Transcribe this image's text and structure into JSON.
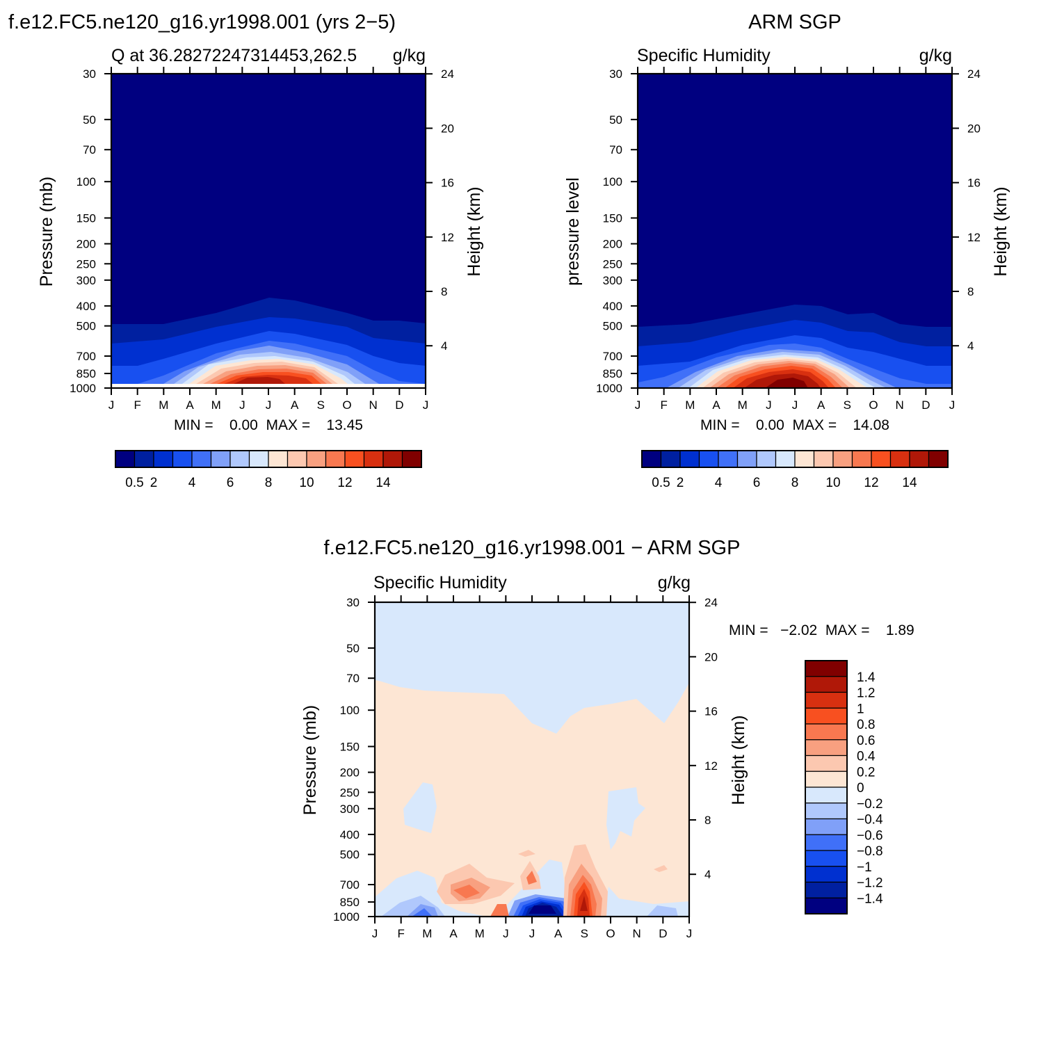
{
  "colors": {
    "seq": [
      "#000080",
      "#0020a0",
      "#0030d0",
      "#1850f0",
      "#4070f8",
      "#80a0f8",
      "#b0c8fc",
      "#d8e8fc",
      "#fde6d4",
      "#fcc8b0",
      "#f8a080",
      "#f87850",
      "#f85020",
      "#d83010",
      "#b01808",
      "#800000"
    ],
    "diff": [
      "#000080",
      "#0020a0",
      "#0030d0",
      "#1850f0",
      "#4070f8",
      "#80a0f8",
      "#b0c8fc",
      "#d8e8fc",
      "#fde6d4",
      "#fcc8b0",
      "#f8a080",
      "#f87850",
      "#f85020",
      "#d83010",
      "#b01808",
      "#800000"
    ]
  },
  "panel1": {
    "header": "f.e12.FC5.ne120_g16.yr1998.001 (yrs 2−5)",
    "left_title": "Q at 36.28272247314453,262.5",
    "right_title": "g/kg",
    "ylabel": "Pressure (mb)",
    "y2label": "Height (km)",
    "stats": "MIN =    0.00  MAX =    13.45"
  },
  "panel2": {
    "header": "ARM SGP",
    "left_title": "Specific Humidity",
    "right_title": "g/kg",
    "ylabel": "pressure level",
    "y2label": "Height (km)",
    "stats": "MIN =    0.00  MAX =    14.08"
  },
  "panel3": {
    "header": "f.e12.FC5.ne120_g16.yr1998.001 − ARM SGP",
    "left_title": "Specific Humidity",
    "right_title": "g/kg",
    "ylabel": "Pressure (mb)",
    "y2label": "Height (km)",
    "stats": "MIN =   −2.02  MAX =    1.89"
  },
  "chart_data": [
    {
      "type": "heatmap",
      "title": "Q at 36.28272247314453,262.5",
      "x": [
        "J",
        "F",
        "M",
        "A",
        "M",
        "J",
        "J",
        "A",
        "S",
        "O",
        "N",
        "D",
        "J"
      ],
      "pressure_ticks": [
        30,
        50,
        70,
        100,
        150,
        200,
        250,
        300,
        400,
        500,
        700,
        850,
        1000
      ],
      "height_ticks": [
        4,
        8,
        12,
        16,
        20,
        24
      ],
      "ylabel": "Pressure (mb)",
      "y2label": "Height (km)",
      "colorbar_labels": [
        "0.5",
        "2",
        "4",
        "6",
        "8",
        "10",
        "12",
        "14"
      ],
      "contour_levels": [
        0.5,
        1,
        2,
        3,
        4,
        5,
        6,
        7,
        8,
        9,
        10,
        11,
        12,
        13,
        14
      ],
      "min": 0.0,
      "max": 13.45,
      "surface_q_monthly": [
        2.3,
        3.0,
        4.4,
        6.2,
        8.7,
        12.4,
        13.4,
        12.9,
        10.9,
        7.5,
        5.1,
        3.2,
        2.3
      ],
      "moist_top_pressure_monthly": [
        490,
        490,
        480,
        455,
        440,
        380,
        350,
        360,
        400,
        445,
        480,
        485,
        490
      ]
    },
    {
      "type": "heatmap",
      "title": "Specific Humidity",
      "x": [
        "J",
        "F",
        "M",
        "A",
        "M",
        "J",
        "J",
        "A",
        "S",
        "O",
        "N",
        "D",
        "J"
      ],
      "pressure_ticks": [
        30,
        50,
        70,
        100,
        150,
        200,
        250,
        300,
        400,
        500,
        700,
        850,
        1000
      ],
      "height_ticks": [
        4,
        8,
        12,
        16,
        20,
        24
      ],
      "ylabel": "pressure level",
      "y2label": "Height (km)",
      "colorbar_labels": [
        "0.5",
        "2",
        "4",
        "6",
        "8",
        "10",
        "12",
        "14"
      ],
      "contour_levels": [
        0.5,
        1,
        2,
        3,
        4,
        5,
        6,
        7,
        8,
        9,
        10,
        11,
        12,
        13,
        14
      ],
      "min": 0.0,
      "max": 14.08,
      "surface_q_monthly": [
        3.2,
        3.6,
        4.8,
        6.6,
        9.9,
        12.9,
        14.0,
        13.1,
        9.6,
        6.8,
        4.6,
        3.6,
        3.2
      ],
      "moist_top_pressure_monthly": [
        500,
        500,
        490,
        465,
        450,
        420,
        405,
        405,
        440,
        450,
        490,
        500,
        500
      ]
    },
    {
      "type": "heatmap",
      "title": "Specific Humidity",
      "x": [
        "J",
        "F",
        "M",
        "A",
        "M",
        "J",
        "J",
        "A",
        "S",
        "O",
        "N",
        "D",
        "J"
      ],
      "pressure_ticks": [
        30,
        50,
        70,
        100,
        150,
        200,
        250,
        300,
        400,
        500,
        700,
        850,
        1000
      ],
      "height_ticks": [
        4,
        8,
        12,
        16,
        20,
        24
      ],
      "ylabel": "Pressure (mb)",
      "y2label": "Height (km)",
      "colorbar_labels": [
        "1.4",
        "1.2",
        "1",
        "0.8",
        "0.6",
        "0.4",
        "0.2",
        "0",
        "−0.2",
        "−0.4",
        "−0.6",
        "−0.8",
        "−1",
        "−1.2",
        "−1.4"
      ],
      "contour_levels": [
        -1.4,
        -1.2,
        -1,
        -0.8,
        -0.6,
        -0.4,
        -0.2,
        0,
        0.2,
        0.4,
        0.6,
        0.8,
        1,
        1.2,
        1.4
      ],
      "min": -2.02,
      "max": 1.89,
      "features": [
        {
          "month": 6.1,
          "pressure": 900,
          "value": -2.0
        },
        {
          "month": 8.0,
          "pressure": 820,
          "value": 1.89
        },
        {
          "month": 3.3,
          "pressure": 760,
          "value": 0.7
        },
        {
          "month": 1.8,
          "pressure": 950,
          "value": -1.0
        }
      ]
    }
  ]
}
